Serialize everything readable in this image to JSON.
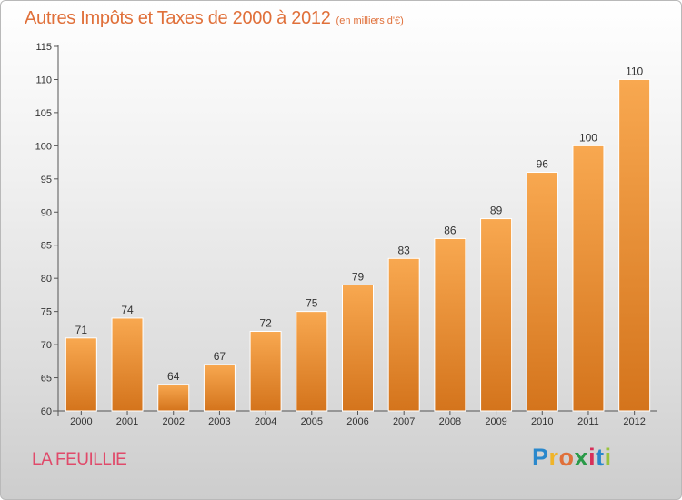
{
  "title": "Autres Impôts et Taxes de 2000 à 2012",
  "subtitle": "(en milliers d'€)",
  "commune": "LA FEUILLIE",
  "logo": {
    "letters": [
      "P",
      "r",
      "o",
      "x",
      "i",
      "t",
      "i"
    ],
    "colors": [
      "#2a88cc",
      "#f0b429",
      "#e0703a",
      "#2a9a48",
      "#d7305a",
      "#2a88cc",
      "#9ac33c"
    ]
  },
  "colors": {
    "bar_light": "#f8a850",
    "bar_dark": "#d4741c",
    "title": "#e0703a",
    "commune": "#e04a6a"
  },
  "chart_data": {
    "type": "bar",
    "categories": [
      "2000",
      "2001",
      "2002",
      "2003",
      "2004",
      "2005",
      "2006",
      "2007",
      "2008",
      "2009",
      "2010",
      "2011",
      "2012"
    ],
    "values": [
      71,
      74,
      64,
      67,
      72,
      75,
      79,
      83,
      86,
      89,
      96,
      100,
      110
    ],
    "ylim": [
      60,
      115
    ],
    "yticks": [
      60,
      65,
      70,
      75,
      80,
      85,
      90,
      95,
      100,
      105,
      110,
      115
    ],
    "data_labels": true,
    "grid": false
  }
}
